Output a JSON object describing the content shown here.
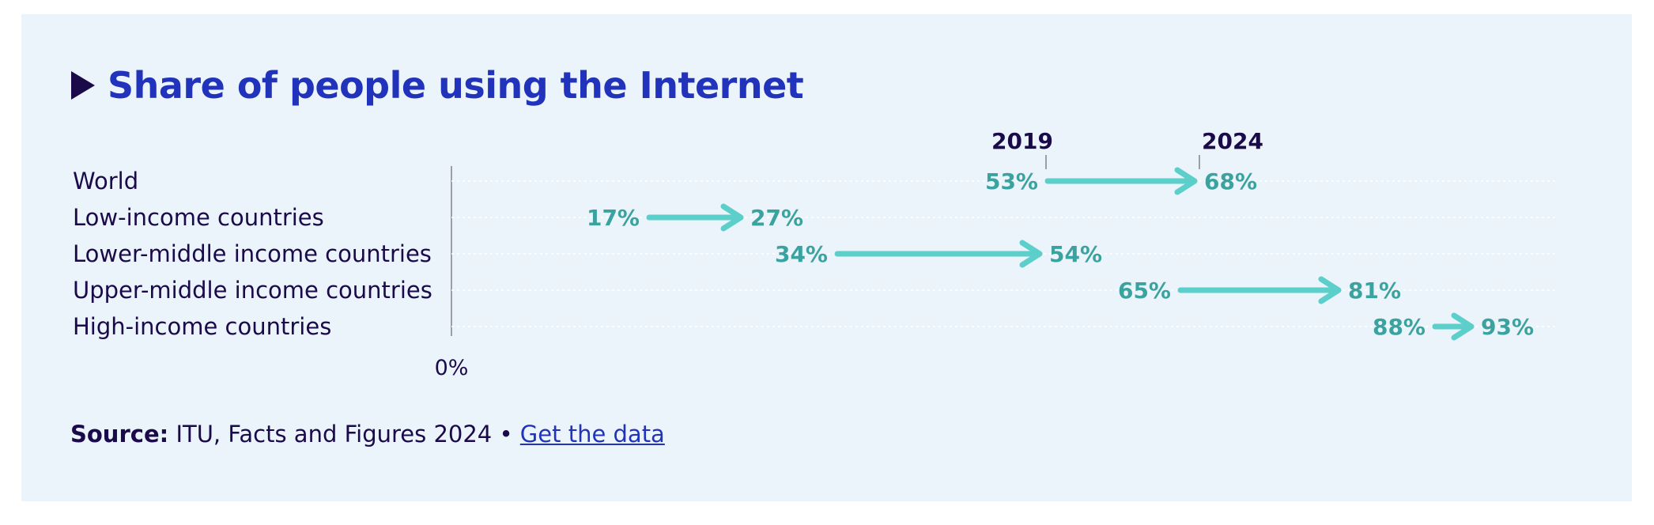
{
  "title": "Share of people using the Internet",
  "source": {
    "label": "Source:",
    "text": "ITU, Facts and Figures 2024 •",
    "link": "Get the data"
  },
  "colors": {
    "arrow": "#5ccfcb",
    "value_text": "#3aa39f",
    "title": "#2233bb",
    "text": "#1a0a4a",
    "background": "#ebf3fb"
  },
  "chart_data": {
    "type": "arrow",
    "title": "Share of people using the Internet",
    "start_label": "2019",
    "end_label": "2024",
    "axis_tick_label": "0%",
    "unit": "%",
    "xlim": [
      0,
      100
    ],
    "categories": [
      "World",
      "Low-income countries",
      "Lower-middle income countries",
      "Upper-middle income countries",
      "High-income countries"
    ],
    "series": [
      {
        "name": "2019",
        "values": [
          53,
          17,
          34,
          65,
          88
        ]
      },
      {
        "name": "2024",
        "values": [
          68,
          27,
          54,
          81,
          93
        ]
      }
    ]
  }
}
